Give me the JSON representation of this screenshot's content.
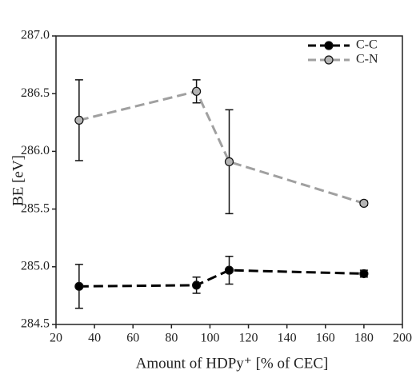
{
  "chart_data": {
    "type": "line",
    "x_label": "Amount of HDPy⁺ [% of CEC]",
    "y_label": "BE [eV]",
    "x": [
      32,
      93,
      110,
      180
    ],
    "series": [
      {
        "name": "C-C",
        "color": "#000000",
        "marker_fill": "#000000",
        "values": [
          284.83,
          284.84,
          284.97,
          284.94
        ],
        "errors": [
          0.19,
          0.07,
          0.12,
          0.03
        ]
      },
      {
        "name": "C-N",
        "color": "#a0a0a0",
        "marker_fill": "#b4b4b4",
        "values": [
          286.27,
          286.52,
          285.91,
          285.55
        ],
        "errors": [
          0.35,
          0.1,
          0.45,
          0.02
        ]
      }
    ],
    "xlim": [
      20,
      200
    ],
    "xticks": [
      20,
      40,
      60,
      80,
      100,
      120,
      140,
      160,
      180,
      200
    ],
    "ylim": [
      284.5,
      287
    ],
    "yticks": [
      {
        "value": 284.5,
        "label": "284.5"
      },
      {
        "value": 285,
        "label": "285.0"
      },
      285.5,
      {
        "value": 286,
        "label": "286.0"
      },
      286.5,
      {
        "value": 287,
        "label": "287.0"
      }
    ],
    "legend": "upper right",
    "grid": false
  }
}
